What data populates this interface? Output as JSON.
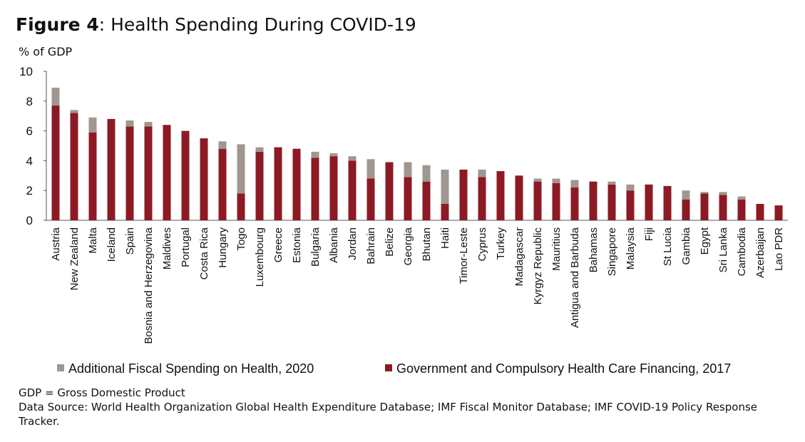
{
  "title_bold": "Figure 4",
  "title_rest": ": Health Spending During COVID-19",
  "unit_label": "% of GDP",
  "colors": {
    "additional": "#9f9790",
    "government": "#8c1a24"
  },
  "chart_data": {
    "type": "bar",
    "stacked": true,
    "categories": [
      "Austria",
      "New Zealand",
      "Malta",
      "Iceland",
      "Spain",
      "Bosnia and Herzegovina",
      "Maldives",
      "Portugal",
      "Costa Rica",
      "Hungary",
      "Togo",
      "Luxembourg",
      "Greece",
      "Estonia",
      "Bulgaria",
      "Albania",
      "Jordan",
      "Bahrain",
      "Belize",
      "Georgia",
      "Bhutan",
      "Haiti",
      "Timor-Leste",
      "Cyprus",
      "Turkey",
      "Madagascar",
      "Kyrgyz Republic",
      "Mauritius",
      "Antigua and Barbuda",
      "Bahamas",
      "Singapore",
      "Malaysia",
      "Fiji",
      "St Lucia",
      "Gambia",
      "Egypt",
      "Sri Lanka",
      "Cambodia",
      "Azerbaijan",
      "Lao PDR"
    ],
    "series": [
      {
        "name": "Government and Compulsory Health Care Financing, 2017",
        "values": [
          7.7,
          7.2,
          5.9,
          6.8,
          6.3,
          6.3,
          6.4,
          6.0,
          5.5,
          4.8,
          1.8,
          4.6,
          4.9,
          4.8,
          4.2,
          4.3,
          4.0,
          2.8,
          3.9,
          2.9,
          2.6,
          1.1,
          3.4,
          2.9,
          3.3,
          3.0,
          2.6,
          2.5,
          2.2,
          2.6,
          2.4,
          2.0,
          2.4,
          2.3,
          1.4,
          1.8,
          1.7,
          1.4,
          1.1,
          1.0
        ]
      },
      {
        "name": "Additional Fiscal  Spending on Health, 2020",
        "values": [
          1.2,
          0.2,
          1.0,
          0.0,
          0.4,
          0.3,
          0.0,
          0.0,
          0.0,
          0.5,
          3.3,
          0.3,
          0.0,
          0.0,
          0.4,
          0.2,
          0.3,
          1.3,
          0.0,
          1.0,
          1.1,
          2.3,
          0.0,
          0.5,
          0.0,
          0.0,
          0.2,
          0.3,
          0.5,
          0.0,
          0.2,
          0.4,
          0.0,
          0.0,
          0.6,
          0.1,
          0.2,
          0.2,
          0.0,
          0.0
        ]
      }
    ],
    "yticks": [
      0,
      2,
      4,
      6,
      8,
      10
    ],
    "ylim": [
      0,
      10
    ],
    "xlabel": "",
    "ylabel": "% of GDP",
    "legend": [
      {
        "label": "Additional Fiscal  Spending on Health, 2020",
        "series": 1
      },
      {
        "label": "Government and Compulsory Health Care Financing, 2017",
        "series": 0
      }
    ],
    "legend_position": "bottom",
    "grid": false
  },
  "footnotes": {
    "line1": "GDP = Gross Domestic Product",
    "line2": "Data Source: World Health Organization Global Health Expenditure Database; IMF Fiscal Monitor Database; IMF COVID-19 Policy Response Tracker."
  }
}
